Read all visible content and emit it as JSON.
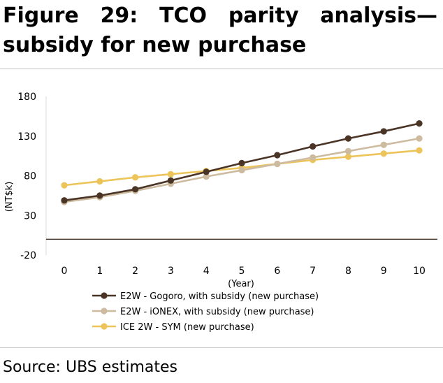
{
  "title_line1": "Figure 29: TCO parity analysis—",
  "title_line2": "subsidy for new purchase",
  "source": "Source: UBS estimates",
  "colors": {
    "gogoro": "#4a3426",
    "ionex": "#cdbba0",
    "sym": "#ecc45a",
    "zero_line": "#4a3426",
    "grid": "#d9d9d9"
  },
  "chart_data": {
    "type": "line",
    "title": "",
    "xlabel": "(Year)",
    "ylabel": "(NT$k)",
    "x": [
      0,
      1,
      2,
      3,
      4,
      5,
      6,
      7,
      8,
      9,
      10
    ],
    "x_tick_labels": [
      "0",
      "1",
      "2",
      "3",
      "4",
      "5",
      "6",
      "7",
      "8",
      "9",
      "10"
    ],
    "y_tick_labels": [
      "-20",
      "30",
      "80",
      "130",
      "180"
    ],
    "y_ticks": [
      -20,
      30,
      80,
      130,
      180
    ],
    "ylim": [
      -20,
      180
    ],
    "grid": false,
    "legend_position": "bottom",
    "series": [
      {
        "name": "E2W - Gogoro, with subsidy (new purchase)",
        "color": "#4a3426",
        "values": [
          49,
          55,
          63,
          74,
          85,
          96,
          106,
          117,
          127,
          136,
          146
        ]
      },
      {
        "name": "E2W - iONEX, with subsidy (new purchase)",
        "color": "#cdbba0",
        "values": [
          47,
          53,
          61,
          70,
          79,
          87,
          95,
          103,
          111,
          119,
          127
        ]
      },
      {
        "name": "ICE 2W - SYM (new purchase)",
        "color": "#ecc45a",
        "values": [
          68,
          73,
          78,
          82,
          86,
          90,
          95,
          100,
          104,
          108,
          112
        ]
      }
    ]
  }
}
